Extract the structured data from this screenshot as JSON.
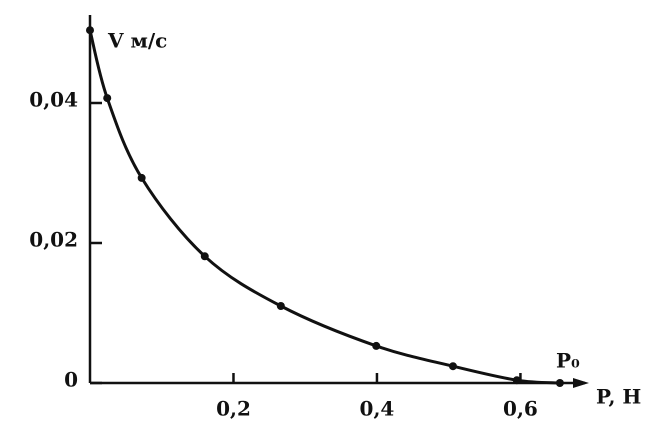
{
  "chart_data": {
    "type": "line",
    "y_label": "V м/с",
    "x_label": "P, H",
    "annotation": "P₀",
    "series": [
      {
        "color": "#111111",
        "x": [
          0,
          0.024,
          0.072,
          0.16,
          0.266,
          0.399,
          0.506,
          0.595,
          0.655
        ],
        "values": [
          0.0504,
          0.0407,
          0.0293,
          0.0181,
          0.011,
          0.0053,
          0.0024,
          0.0004,
          0
        ]
      }
    ],
    "xlim": [
      0,
      0.69
    ],
    "ylim": [
      0,
      0.052
    ],
    "xticks": [
      {
        "value": 0.2,
        "label": "0,2"
      },
      {
        "value": 0.4,
        "label": "0,4"
      },
      {
        "value": 0.6,
        "label": "0,6"
      }
    ],
    "yticks": [
      0,
      {
        "value": 0.02,
        "label": "0,02"
      },
      {
        "value": 0.04,
        "label": "0,04"
      }
    ]
  }
}
